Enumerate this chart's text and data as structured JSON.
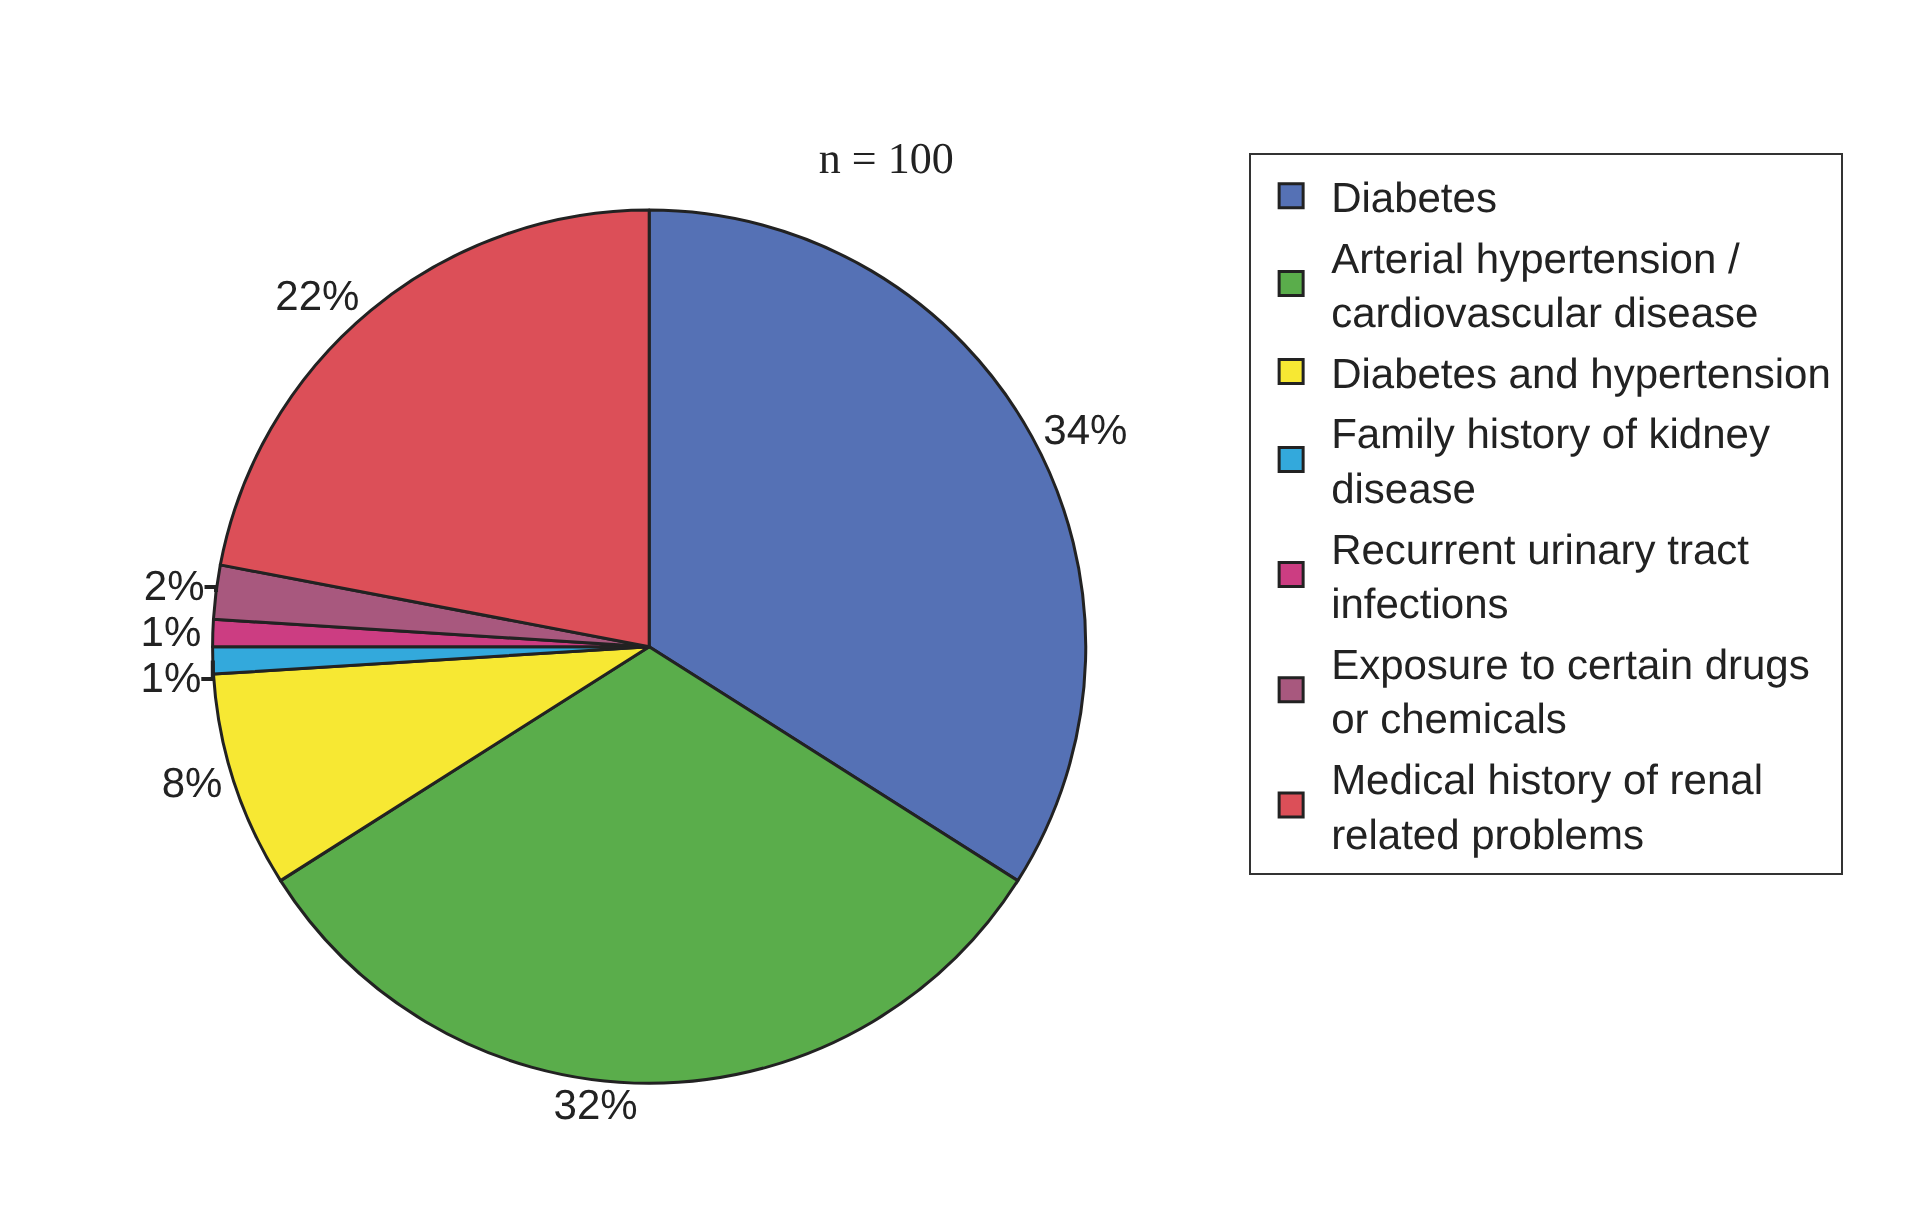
{
  "chart_data": {
    "type": "pie",
    "title": "n = 100",
    "categories": [
      "Diabetes",
      "Arterial hypertension / cardiovascular disease",
      "Diabetes and hypertension",
      "Family history of kidney disease",
      "Recurrent urinary tract infections",
      "Exposure to certain drugs or chemicals",
      "Medical history of renal related problems"
    ],
    "values": [
      34,
      32,
      8,
      1,
      1,
      2,
      22
    ],
    "value_labels": [
      "34%",
      "32%",
      "8%",
      "1%",
      "1%",
      "2%",
      "22%"
    ],
    "colors": [
      "#5571b5",
      "#5aad4b",
      "#f7e833",
      "#33a9dc",
      "#cc3d82",
      "#a8587e",
      "#dc4f58"
    ],
    "legend": "right"
  }
}
